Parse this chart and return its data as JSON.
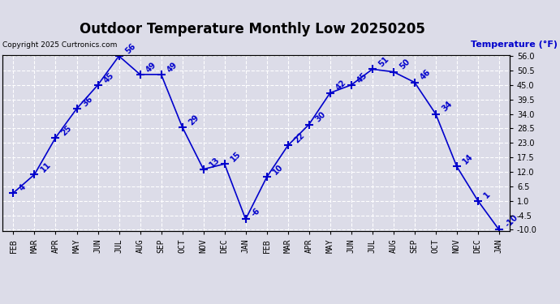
{
  "title": "Outdoor Temperature Monthly Low 20250205",
  "copyright_text": "Copyright 2025 Curtronics.com",
  "ylabel": "Temperature (°F)",
  "months": [
    "FEB",
    "MAR",
    "APR",
    "MAY",
    "JUN",
    "JUL",
    "AUG",
    "SEP",
    "OCT",
    "NOV",
    "DEC",
    "JAN",
    "FEB",
    "MAR",
    "APR",
    "MAY",
    "JUN",
    "JUL",
    "AUG",
    "SEP",
    "OCT",
    "NOV",
    "DEC",
    "JAN"
  ],
  "values": [
    4,
    11,
    25,
    36,
    45,
    56,
    49,
    49,
    29,
    13,
    15,
    -6,
    10,
    22,
    30,
    42,
    45,
    51,
    50,
    46,
    34,
    14,
    1,
    -10
  ],
  "line_color": "#0000cc",
  "marker_color": "#0000cc",
  "title_color": "#000000",
  "label_color": "#0000cc",
  "copyright_color": "#000000",
  "ylabel_color": "#0000cc",
  "ylim_min": -10,
  "ylim_max": 56,
  "yticks": [
    -10.0,
    -4.5,
    1.0,
    6.5,
    12.0,
    17.5,
    23.0,
    28.5,
    34.0,
    39.5,
    45.0,
    50.5,
    56.0
  ],
  "background_color": "#dcdce8",
  "grid_color": "#ffffff",
  "title_fontsize": 12,
  "axis_fontsize": 7,
  "label_fontsize": 7
}
